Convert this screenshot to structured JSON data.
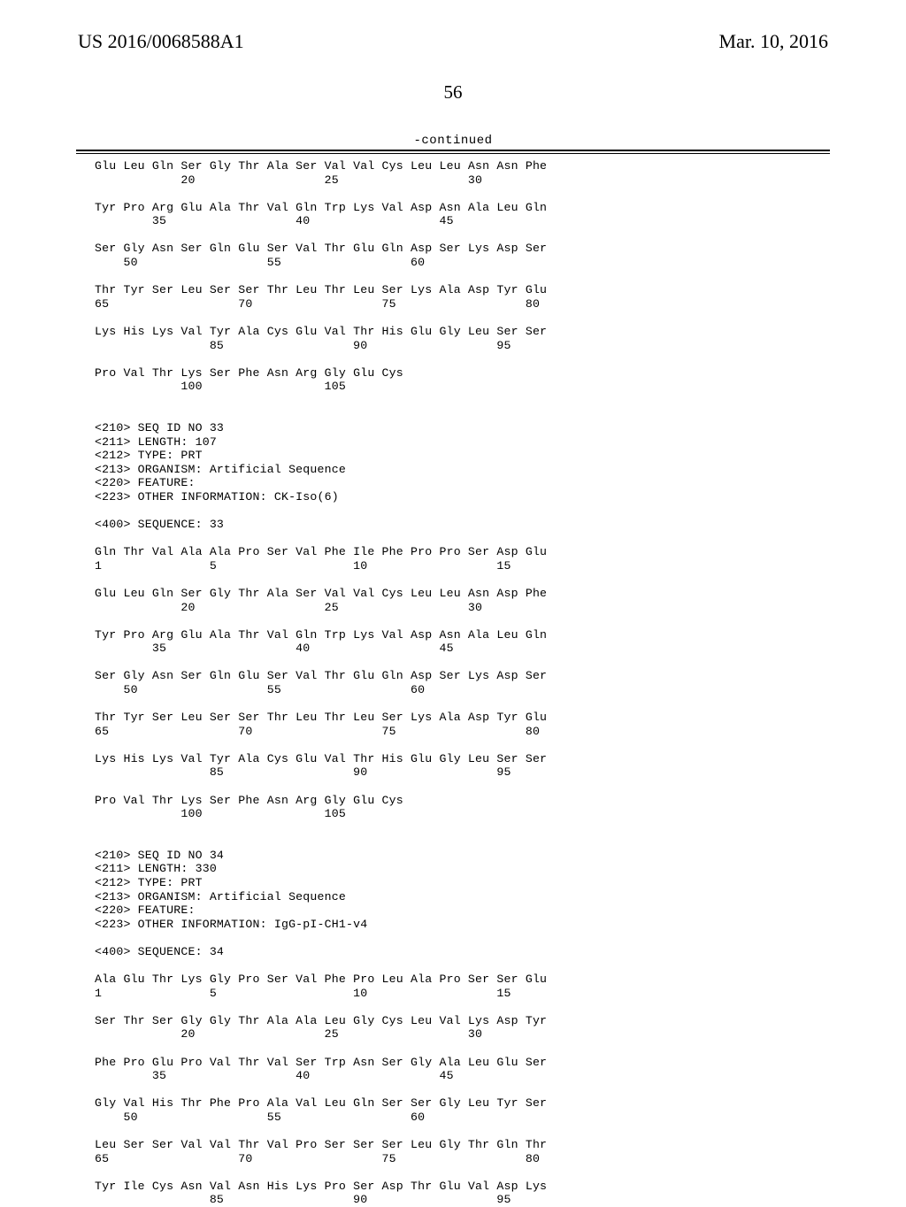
{
  "header": {
    "left": "US 2016/0068588A1",
    "right": "Mar. 10, 2016",
    "page_number": "56",
    "continued": "-continued"
  },
  "seq_text": "Glu Leu Gln Ser Gly Thr Ala Ser Val Val Cys Leu Leu Asn Asn Phe\n            20                  25                  30\n\nTyr Pro Arg Glu Ala Thr Val Gln Trp Lys Val Asp Asn Ala Leu Gln\n        35                  40                  45\n\nSer Gly Asn Ser Gln Glu Ser Val Thr Glu Gln Asp Ser Lys Asp Ser\n    50                  55                  60\n\nThr Tyr Ser Leu Ser Ser Thr Leu Thr Leu Ser Lys Ala Asp Tyr Glu\n65                  70                  75                  80\n\nLys His Lys Val Tyr Ala Cys Glu Val Thr His Glu Gly Leu Ser Ser\n                85                  90                  95\n\nPro Val Thr Lys Ser Phe Asn Arg Gly Glu Cys\n            100                 105\n\n\n<210> SEQ ID NO 33\n<211> LENGTH: 107\n<212> TYPE: PRT\n<213> ORGANISM: Artificial Sequence\n<220> FEATURE:\n<223> OTHER INFORMATION: CK-Iso(6)\n\n<400> SEQUENCE: 33\n\nGln Thr Val Ala Ala Pro Ser Val Phe Ile Phe Pro Pro Ser Asp Glu\n1               5                   10                  15\n\nGlu Leu Gln Ser Gly Thr Ala Ser Val Val Cys Leu Leu Asn Asp Phe\n            20                  25                  30\n\nTyr Pro Arg Glu Ala Thr Val Gln Trp Lys Val Asp Asn Ala Leu Gln\n        35                  40                  45\n\nSer Gly Asn Ser Gln Glu Ser Val Thr Glu Gln Asp Ser Lys Asp Ser\n    50                  55                  60\n\nThr Tyr Ser Leu Ser Ser Thr Leu Thr Leu Ser Lys Ala Asp Tyr Glu\n65                  70                  75                  80\n\nLys His Lys Val Tyr Ala Cys Glu Val Thr His Glu Gly Leu Ser Ser\n                85                  90                  95\n\nPro Val Thr Lys Ser Phe Asn Arg Gly Glu Cys\n            100                 105\n\n\n<210> SEQ ID NO 34\n<211> LENGTH: 330\n<212> TYPE: PRT\n<213> ORGANISM: Artificial Sequence\n<220> FEATURE:\n<223> OTHER INFORMATION: IgG-pI-CH1-v4\n\n<400> SEQUENCE: 34\n\nAla Glu Thr Lys Gly Pro Ser Val Phe Pro Leu Ala Pro Ser Ser Glu\n1               5                   10                  15\n\nSer Thr Ser Gly Gly Thr Ala Ala Leu Gly Cys Leu Val Lys Asp Tyr\n            20                  25                  30\n\nPhe Pro Glu Pro Val Thr Val Ser Trp Asn Ser Gly Ala Leu Glu Ser\n        35                  40                  45\n\nGly Val His Thr Phe Pro Ala Val Leu Gln Ser Ser Gly Leu Tyr Ser\n    50                  55                  60\n\nLeu Ser Ser Val Val Thr Val Pro Ser Ser Ser Leu Gly Thr Gln Thr\n65                  70                  75                  80\n\nTyr Ile Cys Asn Val Asn His Lys Pro Ser Asp Thr Glu Val Asp Lys\n                85                  90                  95"
}
